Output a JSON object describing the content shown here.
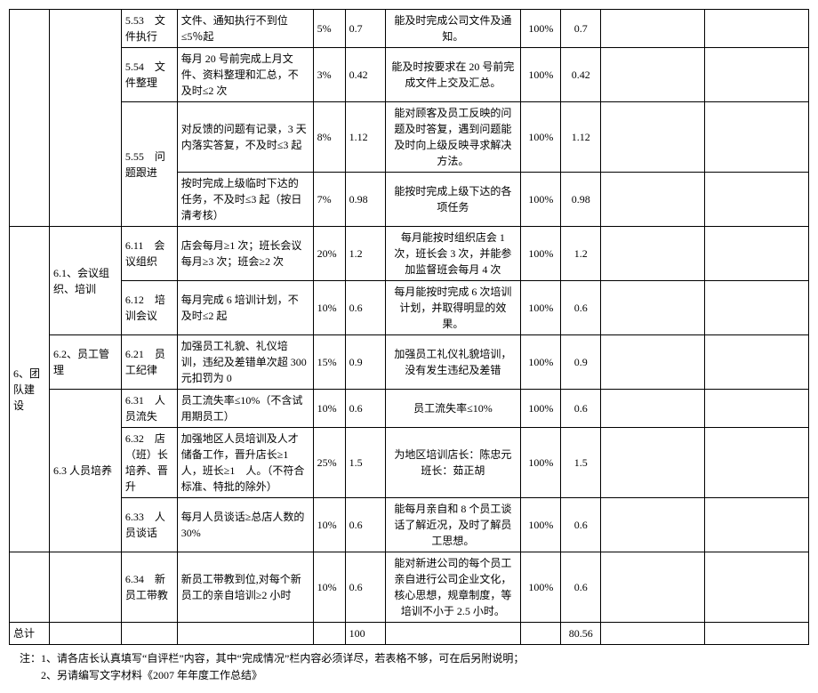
{
  "cols": {
    "c1_w": 5,
    "c2_w": 9,
    "c3_w": 7,
    "c4_w": 17,
    "c5_w": 4,
    "c6_w": 5,
    "c7_w": 17,
    "c8_w": 5,
    "c9_w": 5,
    "c10_w": 13,
    "c11_w": 13
  },
  "rows": [
    {
      "c1": {
        "text": "",
        "rowspan": 4,
        "cls": "center"
      },
      "c2": {
        "text": "",
        "rowspan": 4,
        "cls": "center"
      },
      "c3": {
        "text": "5.53　文件执行",
        "cls": "left"
      },
      "c4": {
        "text": "文件、通知执行不到位≤5％起",
        "cls": "left"
      },
      "c5": {
        "text": "5%",
        "cls": "left"
      },
      "c6": {
        "text": "0.7",
        "cls": "left"
      },
      "c7": {
        "text": "能及时完成公司文件及通知。",
        "cls": "center"
      },
      "c8": {
        "text": "100%",
        "cls": "center"
      },
      "c9": {
        "text": "0.7",
        "cls": "center"
      },
      "c10": {
        "text": "",
        "cls": "center"
      },
      "c11": {
        "text": "",
        "cls": "center"
      }
    },
    {
      "c3": {
        "text": "5.54　文件整理",
        "cls": "left"
      },
      "c4": {
        "text": "每月 20 号前完成上月文件、资料整理和汇总，不及时≤2 次",
        "cls": "left"
      },
      "c5": {
        "text": "3%",
        "cls": "left"
      },
      "c6": {
        "text": "0.42",
        "cls": "left"
      },
      "c7": {
        "text": "能及时按要求在 20 号前完成文件上交及汇总。",
        "cls": "center"
      },
      "c8": {
        "text": "100%",
        "cls": "center"
      },
      "c9": {
        "text": "0.42",
        "cls": "center"
      },
      "c10": {
        "text": "",
        "cls": "center"
      },
      "c11": {
        "text": "",
        "cls": "center"
      }
    },
    {
      "c3": {
        "text": "5.55　问题跟进",
        "rowspan": 2,
        "cls": "left"
      },
      "c4": {
        "text": "对反馈的问题有记录，3 天内落实答复，不及时≤3 起",
        "cls": "left"
      },
      "c5": {
        "text": "8%",
        "cls": "left"
      },
      "c6": {
        "text": "1.12",
        "cls": "left"
      },
      "c7": {
        "text": "能对顾客及员工反映的问题及时答复，遇到问题能及时向上级反映寻求解决方法。",
        "cls": "center"
      },
      "c8": {
        "text": "100%",
        "cls": "center"
      },
      "c9": {
        "text": "1.12",
        "cls": "center"
      },
      "c10": {
        "text": "",
        "cls": "center"
      },
      "c11": {
        "text": "",
        "cls": "center"
      }
    },
    {
      "c4": {
        "text": "按时完成上级临时下达的任务，不及时≤3 起（按日清考核）",
        "cls": "left"
      },
      "c5": {
        "text": "7%",
        "cls": "left"
      },
      "c6": {
        "text": "0.98",
        "cls": "left"
      },
      "c7": {
        "text": "能按时完成上级下达的各项任务",
        "cls": "center"
      },
      "c8": {
        "text": "100%",
        "cls": "center"
      },
      "c9": {
        "text": "0.98",
        "cls": "center"
      },
      "c10": {
        "text": "",
        "cls": "center"
      },
      "c11": {
        "text": "",
        "cls": "center"
      }
    },
    {
      "c1": {
        "text": "6、团队建设",
        "rowspan": 6,
        "cls": "left"
      },
      "c2": {
        "text": "6.1、会议组织、培训",
        "rowspan": 2,
        "cls": "left"
      },
      "c3": {
        "text": "6.11　会议组织",
        "cls": "left"
      },
      "c4": {
        "text": "店会每月≥1 次；班长会议每月≥3 次；班会≥2 次",
        "cls": "left"
      },
      "c5": {
        "text": "20%",
        "cls": "left"
      },
      "c6": {
        "text": "1.2",
        "cls": "left"
      },
      "c7": {
        "text": "每月能按时组织店会 1 次，班长会 3 次，并能参加监督班会每月 4 次",
        "cls": "center"
      },
      "c8": {
        "text": "100%",
        "cls": "center"
      },
      "c9": {
        "text": "1.2",
        "cls": "center"
      },
      "c10": {
        "text": "",
        "cls": "center"
      },
      "c11": {
        "text": "",
        "cls": "center"
      }
    },
    {
      "c3": {
        "text": "6.12　培训会议",
        "cls": "left"
      },
      "c4": {
        "text": "每月完成 6 培训计划，不及时≤2 起",
        "cls": "left"
      },
      "c5": {
        "text": "10%",
        "cls": "left"
      },
      "c6": {
        "text": "0.6",
        "cls": "left"
      },
      "c7": {
        "text": "每月能按时完成 6 次培训计划，并取得明显的效果。",
        "cls": "center"
      },
      "c8": {
        "text": "100%",
        "cls": "center"
      },
      "c9": {
        "text": "0.6",
        "cls": "center"
      },
      "c10": {
        "text": "",
        "cls": "center"
      },
      "c11": {
        "text": "",
        "cls": "center"
      }
    },
    {
      "c2": {
        "text": "6.2、员工管理",
        "cls": "left"
      },
      "c3": {
        "text": "6.21　员工纪律",
        "cls": "left"
      },
      "c4": {
        "text": "加强员工礼貌、礼仪培训，违纪及差错单次超 300 元扣罚为 0",
        "cls": "left"
      },
      "c5": {
        "text": "15%",
        "cls": "left"
      },
      "c6": {
        "text": "0.9",
        "cls": "left"
      },
      "c7": {
        "text": "加强员工礼仪礼貌培训，没有发生违纪及差错",
        "cls": "center"
      },
      "c8": {
        "text": "100%",
        "cls": "center"
      },
      "c9": {
        "text": "0.9",
        "cls": "center"
      },
      "c10": {
        "text": "",
        "cls": "center"
      },
      "c11": {
        "text": "",
        "cls": "center"
      }
    },
    {
      "c2": {
        "text": "6.3 人员培养",
        "rowspan": 3,
        "cls": "left"
      },
      "c3": {
        "text": "6.31　人员流失",
        "cls": "left"
      },
      "c4": {
        "text": "员工流失率≤10%（不含试用期员工）",
        "cls": "left"
      },
      "c5": {
        "text": "10%",
        "cls": "left"
      },
      "c6": {
        "text": "0.6",
        "cls": "left"
      },
      "c7": {
        "text": "员工流失率≤10%",
        "cls": "center"
      },
      "c8": {
        "text": "100%",
        "cls": "center"
      },
      "c9": {
        "text": "0.6",
        "cls": "center"
      },
      "c10": {
        "text": "",
        "cls": "center"
      },
      "c11": {
        "text": "",
        "cls": "center"
      }
    },
    {
      "c3": {
        "text": "6.32　店（班）长培养、晋升",
        "cls": "left"
      },
      "c4": {
        "text": "加强地区人员培训及人才储备工作，晋升店长≥1 人，班长≥1　人。（不符合标准、特批的除外）",
        "cls": "left"
      },
      "c5": {
        "text": "25%",
        "cls": "left"
      },
      "c6": {
        "text": "1.5",
        "cls": "left"
      },
      "c7": {
        "text": "为地区培训店长：陈忠元班长：茹正胡",
        "cls": "center"
      },
      "c8": {
        "text": "100%",
        "cls": "center"
      },
      "c9": {
        "text": "1.5",
        "cls": "center"
      },
      "c10": {
        "text": "",
        "cls": "center"
      },
      "c11": {
        "text": "",
        "cls": "center"
      }
    },
    {
      "c3": {
        "text": "6.33　人员谈话",
        "cls": "left"
      },
      "c4": {
        "text": "每月人员谈话≥总店人数的 30%",
        "cls": "left"
      },
      "c5": {
        "text": "10%",
        "cls": "left"
      },
      "c6": {
        "text": "0.6",
        "cls": "left"
      },
      "c7": {
        "text": "能每月亲自和 8 个员工谈话了解近况，及时了解员工思想。",
        "cls": "center"
      },
      "c8": {
        "text": "100%",
        "cls": "center"
      },
      "c9": {
        "text": "0.6",
        "cls": "center"
      },
      "c10": {
        "text": "",
        "cls": "center"
      },
      "c11": {
        "text": "",
        "cls": "center"
      }
    },
    {
      "c1": {
        "text": "",
        "cls": "center"
      },
      "c2": {
        "text": "",
        "cls": "center"
      },
      "c3": {
        "text": "6.34　新员工带教",
        "cls": "left"
      },
      "c4": {
        "text": "新员工带教到位,对每个新员工的亲自培训≥2 小时",
        "cls": "left"
      },
      "c5": {
        "text": "10%",
        "cls": "left"
      },
      "c6": {
        "text": "0.6",
        "cls": "left"
      },
      "c7": {
        "text": "能对新进公司的每个员工亲自进行公司企业文化，核心思想，规章制度，等培训不小于 2.5 小时。",
        "cls": "center"
      },
      "c8": {
        "text": "100%",
        "cls": "center"
      },
      "c9": {
        "text": "0.6",
        "cls": "center"
      },
      "c10": {
        "text": "",
        "cls": "center"
      },
      "c11": {
        "text": "",
        "cls": "center"
      }
    },
    {
      "c1": {
        "text": "总计",
        "cls": "left"
      },
      "c2": {
        "text": "",
        "cls": "center"
      },
      "c3": {
        "text": "",
        "cls": "center"
      },
      "c4": {
        "text": "",
        "cls": "center"
      },
      "c5": {
        "text": "",
        "cls": "center"
      },
      "c6": {
        "text": "100",
        "cls": "left"
      },
      "c7": {
        "text": "",
        "cls": "center"
      },
      "c8": {
        "text": "",
        "cls": "center"
      },
      "c9": {
        "text": "80.56",
        "cls": "center"
      },
      "c10": {
        "text": "",
        "cls": "center"
      },
      "c11": {
        "text": "",
        "cls": "center"
      }
    }
  ],
  "notes": {
    "prefix": "注：",
    "line1": "1、请各店长认真填写“自评栏”内容，其中“完成情况”栏内容必须详尽，若表格不够，可在后另附说明；",
    "line2": "2、另请编写文字材料《2007 年年度工作总结》"
  }
}
